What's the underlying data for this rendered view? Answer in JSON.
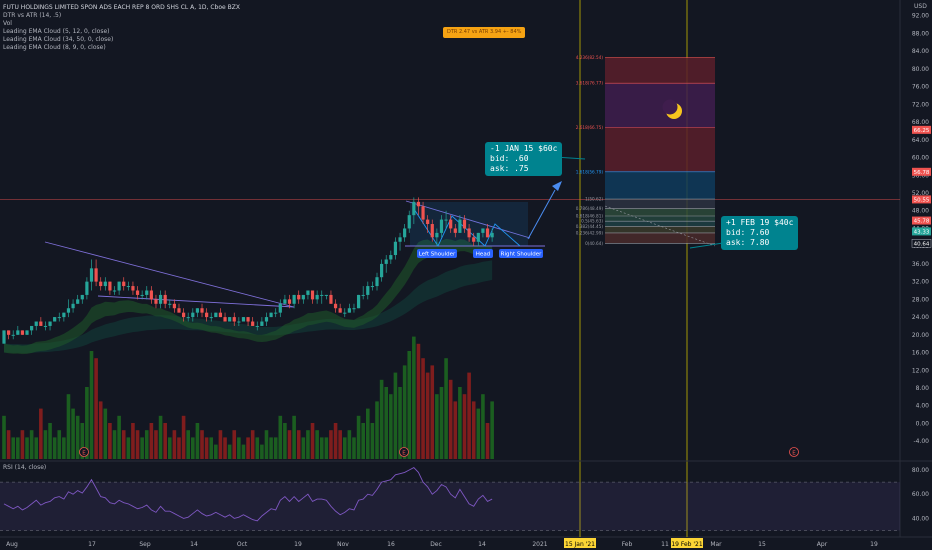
{
  "header": {
    "title": "FUTU HOLDINGS LIMITED SPON ADS EACH REP 8 ORD SHS CL A, 1D, Cboe BZX",
    "indicators": [
      "DTR vs ATR (14, .5)",
      "Vol",
      "Leading EMA Cloud (5, 12, 0, close)",
      "Leading EMA Cloud (34, 50, 0, close)",
      "Leading EMA Cloud (8, 9, 0, close)"
    ],
    "currency": "USD"
  },
  "dtr_label": "DTR 2.47 vs ATR 3.94 +- 84%",
  "annotations": {
    "jan_option": [
      "-1 JAN 15 $60c",
      "bid: .60",
      "ask: .75"
    ],
    "feb_option": [
      "+1 FEB 19 $40c",
      "bid: 7.60",
      "ask: 7.80"
    ],
    "pattern": [
      "Left Shoulder",
      "Head",
      "Right Shoulder"
    ]
  },
  "rsi_label": "RSI (14, close)",
  "colors": {
    "up": "#26a69a",
    "down": "#ef5350",
    "vol_up": "#1b5e20",
    "vol_down": "#7f1d1d",
    "rsi": "#7e57c2",
    "fib_red": "#ef5350",
    "fib_purple": "#ab47bc",
    "fib_blue": "#2196f3",
    "callout": "#00838f",
    "crosshair": "#c6b800"
  },
  "chart_data": {
    "type": "candlestick",
    "price_axis": {
      "ticks": [
        92.0,
        88.0,
        84.0,
        80.0,
        76.0,
        72.0,
        68.0,
        64.0,
        60.0,
        56.0,
        52.0,
        48.0,
        44.0,
        40.0,
        36.0,
        32.0,
        28.0,
        24.0,
        20.0,
        16.0,
        12.0,
        8.0,
        4.0,
        0.0,
        -4.0
      ],
      "ylim": [
        -6,
        94
      ]
    },
    "price_markers": [
      {
        "label": "66.25",
        "value": 66.25,
        "color": "#ef5350"
      },
      {
        "label": "56.78",
        "value": 56.78,
        "color": "#ef5350"
      },
      {
        "label": "50.55",
        "value": 50.55,
        "color": "#ef5350"
      },
      {
        "label": "45.78",
        "value": 45.78,
        "color": "#ef5350"
      },
      {
        "label": "43.33",
        "value": 43.33,
        "color": "#26a69a"
      },
      {
        "label": "40.64",
        "value": 40.64,
        "color": "#131722"
      }
    ],
    "time_axis": [
      "Aug",
      "17",
      "Sep",
      "14",
      "Oct",
      "19",
      "Nov",
      "16",
      "Dec",
      "14",
      "2021",
      "Feb",
      "11",
      "Mar",
      "15",
      "Apr",
      "19"
    ],
    "time_highlights": [
      "15 Jan '21",
      "19 Feb '21"
    ],
    "fib_levels": [
      {
        "label": "4.236(82.54)",
        "value": 82.54
      },
      {
        "label": "3.618(76.77)",
        "value": 76.77
      },
      {
        "label": "2.618(66.75)",
        "value": 66.75
      },
      {
        "label": "1.618(56.79)",
        "value": 56.79
      },
      {
        "label": "1(50.62)",
        "value": 50.62
      },
      {
        "label": "0.786(48.49)",
        "value": 48.49
      },
      {
        "label": "0.618(46.81)",
        "value": 46.81
      },
      {
        "label": "0.5(45.63)",
        "value": 45.63
      },
      {
        "label": "0.382(44.45)",
        "value": 44.45
      },
      {
        "label": "0.236(42.99)",
        "value": 42.99
      },
      {
        "label": "0(40.64)",
        "value": 40.64
      }
    ],
    "rsi_axis": [
      "80.00",
      "60.00",
      "40.00"
    ],
    "earnings_markers": [
      "E",
      "E",
      "E"
    ],
    "candles": [
      [
        18,
        21,
        18,
        21
      ],
      [
        21,
        21,
        19,
        20
      ],
      [
        20,
        21,
        19,
        20
      ],
      [
        20,
        22,
        20,
        21
      ],
      [
        21,
        21,
        20,
        20
      ],
      [
        20,
        21,
        20,
        21
      ],
      [
        21,
        22,
        20,
        22
      ],
      [
        22,
        23,
        21,
        23
      ],
      [
        23,
        24,
        22,
        22
      ],
      [
        22,
        23,
        21,
        22
      ],
      [
        22,
        23,
        21,
        23
      ],
      [
        23,
        24,
        23,
        24
      ],
      [
        24,
        25,
        23,
        24
      ],
      [
        24,
        25,
        23,
        25
      ],
      [
        25,
        28,
        24,
        26
      ],
      [
        26,
        28,
        25,
        27
      ],
      [
        27,
        29,
        27,
        28
      ],
      [
        28,
        29,
        27,
        29
      ],
      [
        29,
        33,
        28,
        32
      ],
      [
        32,
        37,
        30,
        35
      ],
      [
        35,
        37,
        31,
        32
      ],
      [
        32,
        33,
        30,
        31
      ],
      [
        31,
        33,
        30,
        32
      ],
      [
        32,
        32,
        29,
        30
      ],
      [
        30,
        31,
        29,
        30
      ],
      [
        30,
        32,
        29,
        32
      ],
      [
        32,
        33,
        30,
        31
      ],
      [
        31,
        32,
        30,
        31
      ],
      [
        31,
        32,
        29,
        30
      ],
      [
        30,
        31,
        28,
        29
      ],
      [
        29,
        30,
        28,
        29
      ],
      [
        29,
        31,
        28,
        30
      ],
      [
        30,
        31,
        27,
        28
      ],
      [
        28,
        29,
        26,
        27
      ],
      [
        27,
        30,
        26,
        29
      ],
      [
        29,
        30,
        26,
        27
      ],
      [
        27,
        28,
        26,
        27
      ],
      [
        27,
        28,
        25,
        26
      ],
      [
        26,
        27,
        25,
        25
      ],
      [
        25,
        26,
        23,
        24
      ],
      [
        24,
        25,
        23,
        24
      ],
      [
        24,
        26,
        23,
        25
      ],
      [
        25,
        26,
        24,
        26
      ],
      [
        26,
        27,
        24,
        25
      ],
      [
        25,
        26,
        23,
        24
      ],
      [
        24,
        25,
        23,
        24
      ],
      [
        24,
        25,
        24,
        25
      ],
      [
        25,
        26,
        24,
        24
      ],
      [
        24,
        25,
        23,
        23
      ],
      [
        23,
        24,
        23,
        24
      ],
      [
        24,
        25,
        22,
        23
      ],
      [
        23,
        24,
        22,
        23
      ],
      [
        23,
        24,
        23,
        24
      ],
      [
        24,
        24,
        22,
        23
      ],
      [
        23,
        24,
        22,
        22
      ],
      [
        22,
        23,
        21,
        22
      ],
      [
        22,
        24,
        22,
        23
      ],
      [
        23,
        25,
        22,
        24
      ],
      [
        24,
        25,
        24,
        25
      ],
      [
        25,
        26,
        24,
        25
      ],
      [
        25,
        28,
        24,
        27
      ],
      [
        27,
        29,
        27,
        28
      ],
      [
        28,
        29,
        26,
        27
      ],
      [
        27,
        29,
        26,
        29
      ],
      [
        29,
        30,
        27,
        28
      ],
      [
        28,
        29,
        27,
        29
      ],
      [
        29,
        30,
        28,
        30
      ],
      [
        30,
        30,
        27,
        28
      ],
      [
        28,
        30,
        27,
        29
      ],
      [
        29,
        30,
        27,
        29
      ],
      [
        29,
        29,
        28,
        29
      ],
      [
        29,
        30,
        27,
        27
      ],
      [
        27,
        28,
        25,
        26
      ],
      [
        26,
        27,
        25,
        25
      ],
      [
        25,
        26,
        24,
        25
      ],
      [
        25,
        27,
        25,
        26
      ],
      [
        26,
        27,
        25,
        26
      ],
      [
        26,
        29,
        26,
        29
      ],
      [
        29,
        31,
        28,
        29
      ],
      [
        29,
        32,
        28,
        31
      ],
      [
        31,
        32,
        30,
        31
      ],
      [
        31,
        34,
        30,
        33
      ],
      [
        33,
        37,
        32,
        36
      ],
      [
        36,
        38,
        34,
        37
      ],
      [
        37,
        39,
        36,
        38
      ],
      [
        38,
        42,
        37,
        41
      ],
      [
        41,
        43,
        39,
        42
      ],
      [
        42,
        45,
        41,
        44
      ],
      [
        44,
        48,
        43,
        47
      ],
      [
        47,
        51,
        45,
        50
      ],
      [
        50,
        51,
        47,
        49
      ],
      [
        49,
        50,
        45,
        46
      ],
      [
        46,
        47,
        43,
        45
      ],
      [
        45,
        46,
        41,
        42
      ],
      [
        42,
        44,
        40,
        43
      ],
      [
        43,
        47,
        42,
        46
      ],
      [
        46,
        48,
        44,
        46
      ],
      [
        46,
        47,
        43,
        44
      ],
      [
        44,
        45,
        42,
        43
      ],
      [
        43,
        47,
        43,
        46
      ],
      [
        46,
        47,
        43,
        44
      ],
      [
        44,
        45,
        41,
        42
      ],
      [
        42,
        43,
        40,
        41
      ],
      [
        41,
        43,
        40,
        43
      ],
      [
        43,
        44,
        42,
        44
      ],
      [
        44,
        45,
        42,
        42
      ],
      [
        42,
        44,
        41,
        43
      ]
    ],
    "volume": [
      6,
      4,
      3,
      3,
      4,
      3,
      4,
      3,
      7,
      4,
      5,
      3,
      4,
      3,
      9,
      7,
      6,
      5,
      10,
      15,
      14,
      8,
      7,
      5,
      4,
      6,
      4,
      3,
      5,
      4,
      3,
      4,
      5,
      4,
      6,
      5,
      3,
      4,
      3,
      6,
      4,
      3,
      5,
      4,
      3,
      3,
      2,
      4,
      3,
      2,
      4,
      3,
      2,
      3,
      4,
      3,
      2,
      4,
      3,
      3,
      6,
      5,
      4,
      6,
      4,
      3,
      4,
      5,
      4,
      3,
      3,
      4,
      5,
      4,
      3,
      4,
      3,
      6,
      5,
      7,
      5,
      8,
      11,
      10,
      9,
      12,
      10,
      13,
      15,
      17,
      16,
      14,
      12,
      13,
      9,
      10,
      14,
      11,
      8,
      10,
      9,
      12,
      8,
      7,
      9,
      5,
      8
    ],
    "rsi": [
      52,
      50,
      48,
      50,
      47,
      49,
      52,
      55,
      51,
      53,
      54,
      57,
      58,
      56,
      62,
      60,
      63,
      61,
      66,
      72,
      65,
      58,
      57,
      53,
      52,
      55,
      53,
      52,
      50,
      48,
      49,
      51,
      47,
      45,
      50,
      46,
      46,
      44,
      42,
      40,
      41,
      44,
      47,
      44,
      42,
      43,
      45,
      43,
      41,
      43,
      40,
      41,
      43,
      41,
      39,
      38,
      42,
      45,
      48,
      47,
      55,
      58,
      54,
      58,
      54,
      57,
      60,
      54,
      56,
      56,
      55,
      50,
      46,
      43,
      45,
      48,
      47,
      55,
      56,
      60,
      59,
      64,
      70,
      71,
      72,
      76,
      77,
      78,
      80,
      82,
      78,
      70,
      66,
      60,
      63,
      68,
      66,
      60,
      57,
      64,
      58,
      52,
      50,
      56,
      59,
      54,
      56
    ]
  }
}
